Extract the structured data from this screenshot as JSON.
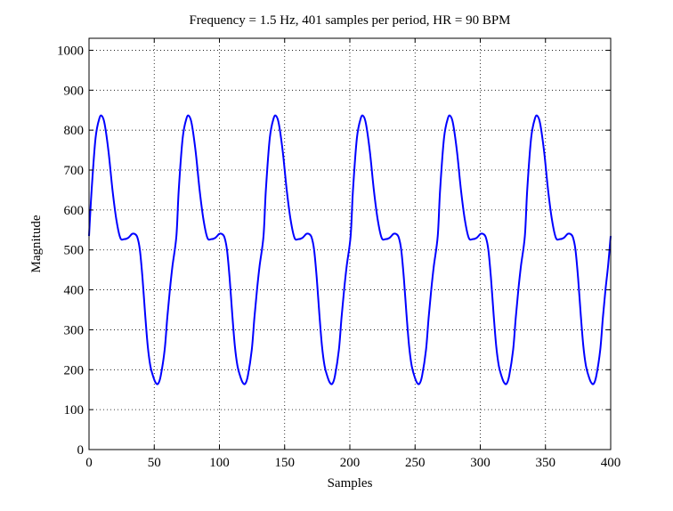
{
  "chart_data": {
    "type": "line",
    "title": "Frequency = 1.5 Hz, 401 samples per period, HR = 90 BPM",
    "xlabel": "Samples",
    "ylabel": "Magnitude",
    "xlim": [
      0,
      400
    ],
    "ylim": [
      0,
      1030
    ],
    "xticks": [
      0,
      50,
      100,
      150,
      200,
      250,
      300,
      350,
      400
    ],
    "yticks": [
      0,
      100,
      200,
      300,
      400,
      500,
      600,
      700,
      800,
      900,
      1000
    ],
    "grid": true,
    "line_color": "#0000ff",
    "series": [
      {
        "x": [
          0,
          2,
          5,
          8,
          10,
          12,
          15,
          18,
          21,
          24,
          27,
          30,
          33,
          35,
          37,
          39,
          41,
          43,
          45,
          47,
          49,
          51,
          53,
          55,
          58,
          60,
          62,
          64,
          67
        ],
        "values": [
          535,
          650,
          780,
          830,
          835,
          815,
          745,
          650,
          575,
          530,
          527,
          530,
          540,
          540,
          532,
          500,
          430,
          340,
          260,
          210,
          185,
          168,
          165,
          185,
          250,
          330,
          400,
          460,
          535
        ]
      }
    ],
    "period": 66.8,
    "n_periods": 6
  }
}
